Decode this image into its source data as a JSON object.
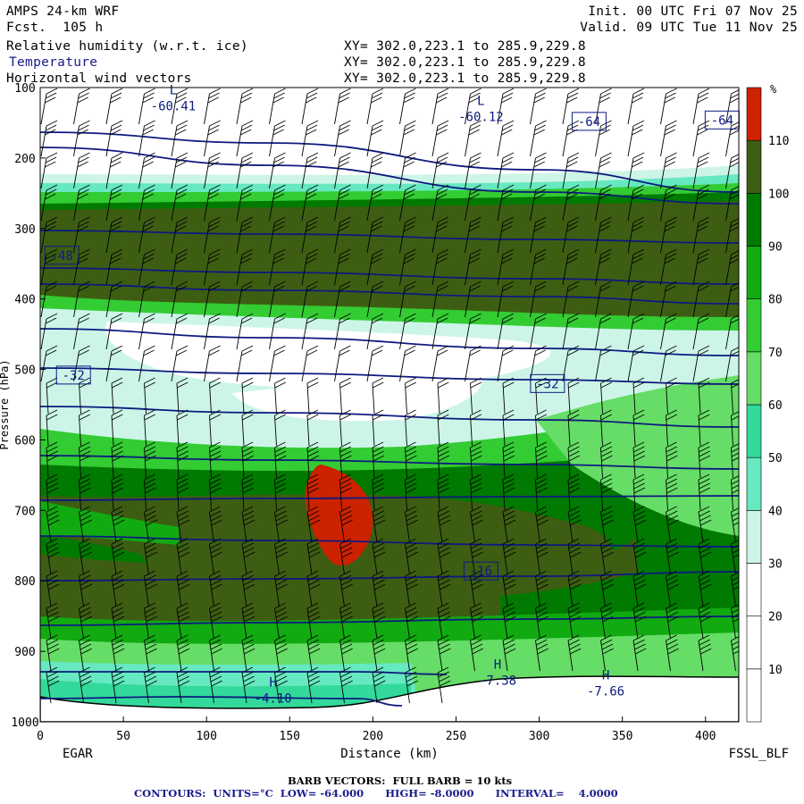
{
  "header": {
    "model": "AMPS 24-km WRF",
    "fcst": "Fcst.  105 h",
    "init": "Init. 00 UTC Fri 07 Nov 25",
    "valid": "Valid. 09 UTC Tue 11 Nov 25",
    "fields": [
      {
        "name": "Relative humidity (w.r.t. ice)",
        "xy": "XY= 302.0,223.1 to 285.9,229.8"
      },
      {
        "name": "Temperature",
        "xy": "XY= 302.0,223.1 to 285.9,229.8"
      },
      {
        "name": "Horizontal wind vectors",
        "xy": "XY= 302.0,223.1 to 285.9,229.8"
      }
    ]
  },
  "footer": {
    "barb": "BARB VECTORS:  FULL BARB = 10 kts",
    "contours": "CONTOURS:  UNITS=°C  LOW= -64.000      HIGH= -8.0000      INTERVAL=    4.0000"
  },
  "colors": {
    "rh_30_40": "#ccf5e8",
    "rh_40_50": "#66e8c0",
    "rh_50_60": "#33d99a",
    "rh_60_70": "#66dd66",
    "rh_70_80": "#33cc33",
    "rh_80_90": "#11aa11",
    "rh_90_100": "#007a00",
    "rh_100_110": "#3d5e12",
    "rh_110_plus": "#cc2200",
    "contour": "#0d1a80"
  },
  "chart_data": {
    "type": "heatmap",
    "xlabel": "Distance (km)",
    "ylabel": "Pressure (hPa)",
    "xlim": [
      0,
      420
    ],
    "ylim": [
      1000,
      100
    ],
    "x_ticks": [
      0,
      50,
      100,
      150,
      200,
      250,
      300,
      350,
      400
    ],
    "y_ticks": [
      100,
      200,
      300,
      400,
      500,
      600,
      700,
      800,
      900,
      1000
    ],
    "left_endpoint": "EGAR",
    "right_endpoint": "FSSL_BLF",
    "colorbar": {
      "unit": "%",
      "ticks": [
        10,
        20,
        30,
        40,
        50,
        60,
        70,
        80,
        90,
        100,
        110
      ]
    },
    "temperature_contour_labels": [
      {
        "text": "-64",
        "x": 330,
        "p": 148
      },
      {
        "text": "-64",
        "x": 410,
        "p": 146
      },
      {
        "text": "-48",
        "x": 13,
        "p": 338
      },
      {
        "text": "-32",
        "x": 20,
        "p": 508
      },
      {
        "text": "-32",
        "x": 305,
        "p": 520
      },
      {
        "text": "-16",
        "x": 265,
        "p": 786
      }
    ],
    "extrema": [
      {
        "kind": "L",
        "value": "-60.41",
        "x": 80,
        "p": 125
      },
      {
        "kind": "L",
        "value": "-60.12",
        "x": 265,
        "p": 140
      },
      {
        "kind": "H",
        "value": "-4.10",
        "x": 140,
        "p": 965
      },
      {
        "kind": "H",
        "value": "-7.38",
        "x": 275,
        "p": 940
      },
      {
        "kind": "H",
        "value": "-7.66",
        "x": 340,
        "p": 955
      }
    ]
  }
}
